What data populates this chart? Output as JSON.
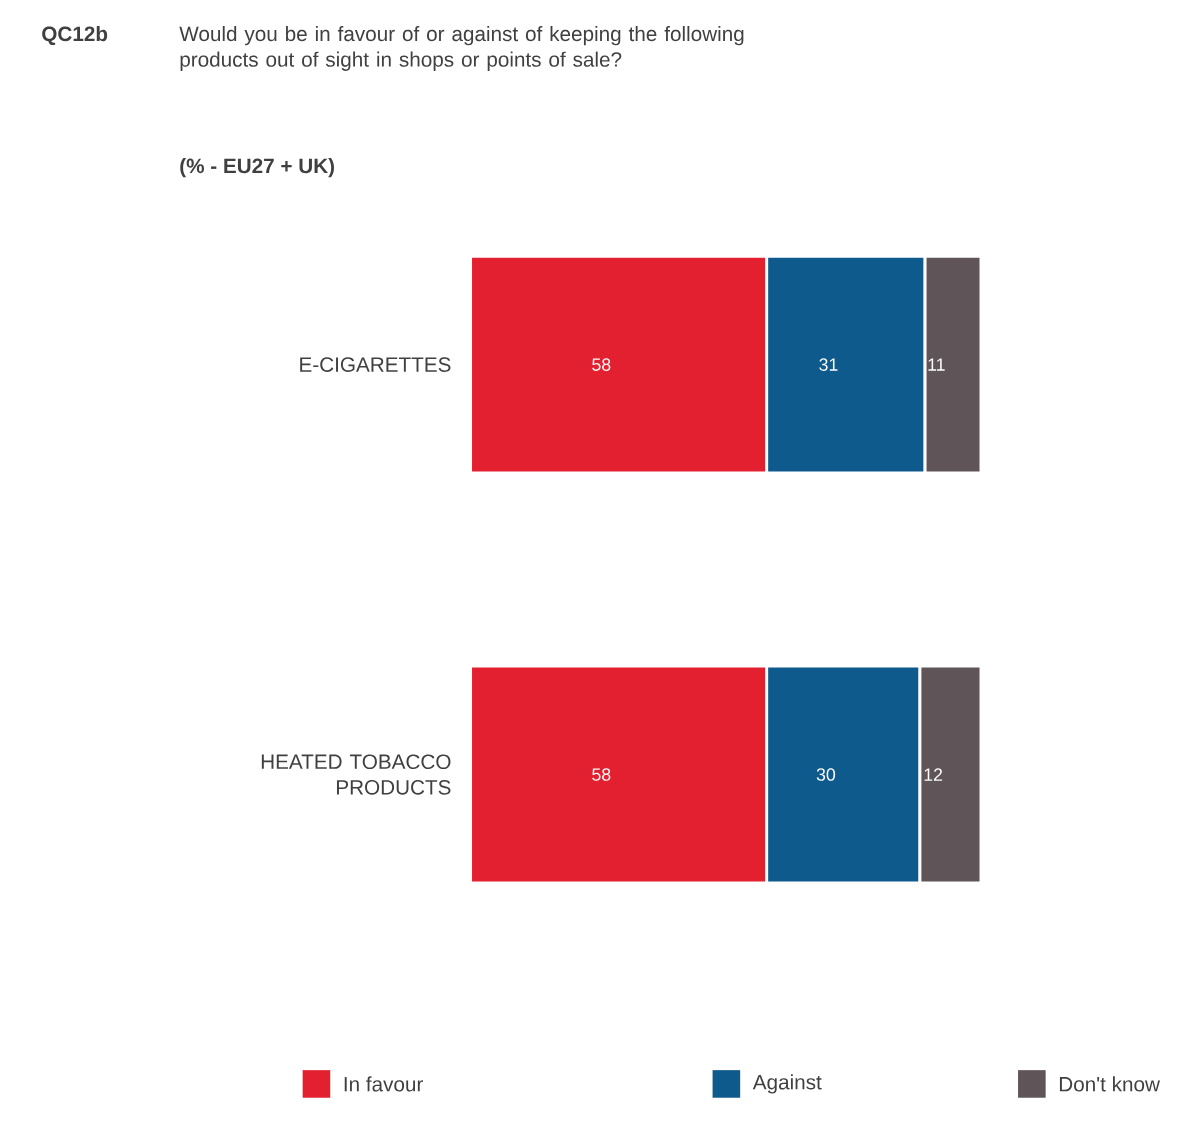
{
  "chart_data": {
    "type": "bar",
    "orientation": "horizontal",
    "stacked": true,
    "title": "QC12b",
    "subtitle": "Would you be in favour of or against of keeping the following products out of sight in shops or points of sale?",
    "annotations": [
      "(% - EU27 + UK)"
    ],
    "categories": [
      "E-CIGARETTES",
      "HEATED TOBACCO PRODUCTS"
    ],
    "series": [
      {
        "name": "In favour",
        "color": "#e3202f",
        "values": [
          58,
          58
        ]
      },
      {
        "name": "Against",
        "color": "#0f5a8c",
        "values": [
          31,
          30
        ]
      },
      {
        "name": "Don't know",
        "color": "#5f5458",
        "values": [
          11,
          12
        ]
      }
    ],
    "data_labels": true,
    "legend": "bottom"
  }
}
